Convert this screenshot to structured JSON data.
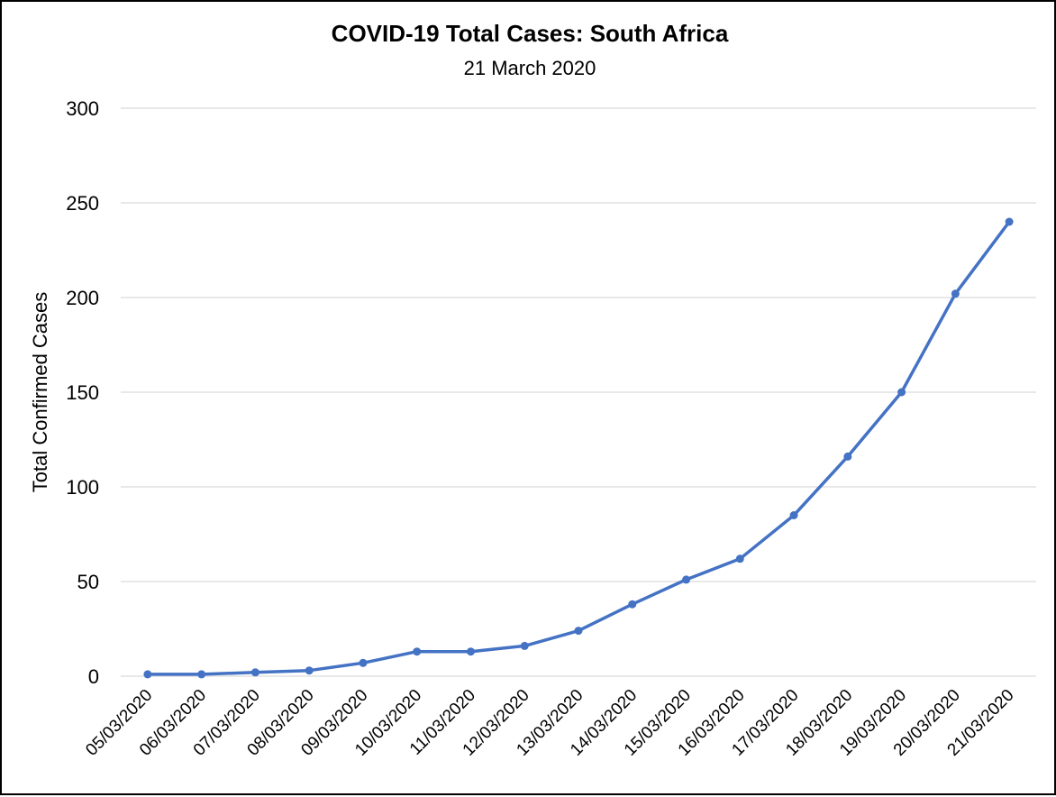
{
  "chart_data": {
    "type": "line",
    "title": "COVID-19 Total Cases: South Africa",
    "subtitle": "21 March 2020",
    "xlabel": "",
    "ylabel": "Total Confirmed Cases",
    "ylim": [
      0,
      300
    ],
    "yticks": [
      0,
      50,
      100,
      150,
      200,
      250,
      300
    ],
    "grid": true,
    "legend": "none",
    "line_color": "#4472c4",
    "categories": [
      "05/03/2020",
      "06/03/2020",
      "07/03/2020",
      "08/03/2020",
      "09/03/2020",
      "10/03/2020",
      "11/03/2020",
      "12/03/2020",
      "13/03/2020",
      "14/03/2020",
      "15/03/2020",
      "16/03/2020",
      "17/03/2020",
      "18/03/2020",
      "19/03/2020",
      "20/03/2020",
      "21/03/2020"
    ],
    "series": [
      {
        "values": [
          1,
          1,
          2,
          3,
          7,
          13,
          13,
          16,
          24,
          38,
          51,
          62,
          85,
          116,
          150,
          202,
          240
        ]
      }
    ]
  }
}
